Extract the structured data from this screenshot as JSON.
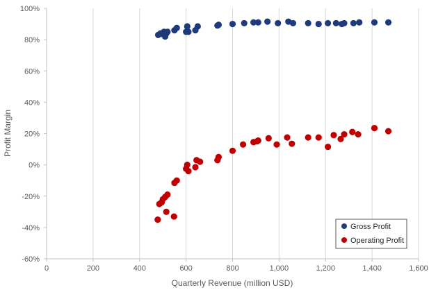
{
  "chart_data": {
    "type": "scatter",
    "title": "",
    "xlabel": "Quarterly Revenue (million USD)",
    "ylabel": "Profit Margin",
    "xlim": [
      0,
      1600
    ],
    "ylim": [
      -60,
      100
    ],
    "x_ticks": [
      0,
      200,
      400,
      600,
      800,
      1000,
      1200,
      1400,
      1600
    ],
    "x_tick_labels": [
      "0",
      "200",
      "400",
      "600",
      "800",
      "1,000",
      "1,200",
      "1,400",
      "1,600"
    ],
    "y_ticks": [
      -60,
      -40,
      -20,
      0,
      20,
      40,
      60,
      80,
      100
    ],
    "y_tick_labels": [
      "-60%",
      "-40%",
      "-20%",
      "0%",
      "20%",
      "40%",
      "60%",
      "80%",
      "100%"
    ],
    "grid": "vertical",
    "legend_position": "bottom-right",
    "series": [
      {
        "name": "Gross Profit",
        "color": "#1f3a7a",
        "points": [
          [
            480,
            83
          ],
          [
            490,
            84
          ],
          [
            500,
            83.5
          ],
          [
            505,
            85
          ],
          [
            510,
            82
          ],
          [
            515,
            84
          ],
          [
            520,
            85
          ],
          [
            550,
            86
          ],
          [
            560,
            87.5
          ],
          [
            600,
            85
          ],
          [
            605,
            88.5
          ],
          [
            610,
            85
          ],
          [
            640,
            86
          ],
          [
            650,
            88.5
          ],
          [
            735,
            89
          ],
          [
            740,
            89.5
          ],
          [
            800,
            90
          ],
          [
            850,
            90.5
          ],
          [
            890,
            91
          ],
          [
            910,
            91
          ],
          [
            950,
            91.5
          ],
          [
            995,
            90.5
          ],
          [
            1040,
            91.5
          ],
          [
            1060,
            90.5
          ],
          [
            1125,
            90.5
          ],
          [
            1170,
            90
          ],
          [
            1210,
            90.5
          ],
          [
            1245,
            90.5
          ],
          [
            1270,
            90
          ],
          [
            1280,
            90.5
          ],
          [
            1320,
            90.5
          ],
          [
            1345,
            91
          ],
          [
            1410,
            91
          ],
          [
            1470,
            91
          ]
        ]
      },
      {
        "name": "Operating Profit",
        "color": "#c00000",
        "points": [
          [
            478,
            -35
          ],
          [
            485,
            -25
          ],
          [
            495,
            -24
          ],
          [
            500,
            -22
          ],
          [
            510,
            -20.5
          ],
          [
            515,
            -30
          ],
          [
            520,
            -19
          ],
          [
            548,
            -33
          ],
          [
            550,
            -11.5
          ],
          [
            560,
            -10
          ],
          [
            600,
            -2.5
          ],
          [
            605,
            0
          ],
          [
            610,
            -4
          ],
          [
            640,
            -1.5
          ],
          [
            645,
            3
          ],
          [
            660,
            2
          ],
          [
            735,
            3
          ],
          [
            740,
            5
          ],
          [
            800,
            9
          ],
          [
            845,
            13
          ],
          [
            890,
            14.5
          ],
          [
            905,
            15
          ],
          [
            910,
            15.5
          ],
          [
            955,
            17
          ],
          [
            990,
            13
          ],
          [
            1035,
            17.5
          ],
          [
            1055,
            13.5
          ],
          [
            1125,
            17.5
          ],
          [
            1170,
            17.5
          ],
          [
            1210,
            11.5
          ],
          [
            1235,
            19
          ],
          [
            1265,
            16.5
          ],
          [
            1280,
            19.5
          ],
          [
            1315,
            21
          ],
          [
            1340,
            19.5
          ],
          [
            1410,
            23.5
          ],
          [
            1470,
            21.5
          ]
        ]
      }
    ]
  }
}
